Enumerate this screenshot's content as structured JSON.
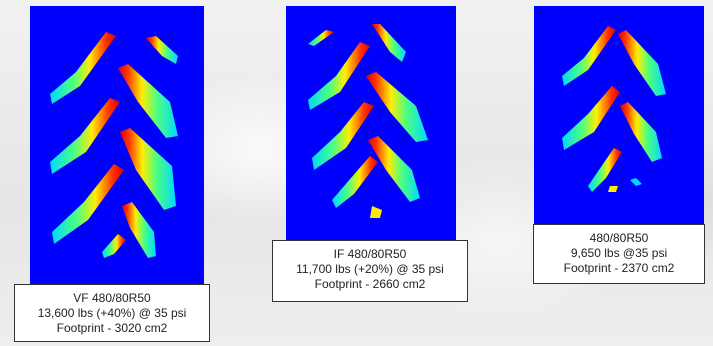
{
  "footprints": [
    {
      "line1": "VF 480/80R50",
      "line2": "13,600 lbs (+40%) @ 35 psi",
      "line3": "Footprint - 3020 cm2"
    },
    {
      "line1": "IF 480/80R50",
      "line2": "11,700 lbs (+20%) @ 35 psi",
      "line3": "Footprint - 2660 cm2"
    },
    {
      "line1": "480/80R50",
      "line2": "9,650 lbs @35 psi",
      "line3": "Footprint - 2370 cm2"
    }
  ],
  "colors": {
    "background": "#0000ff",
    "pressure_low": "#00e0ff",
    "pressure_mid": "#ffff00",
    "pressure_high": "#ff0000"
  }
}
